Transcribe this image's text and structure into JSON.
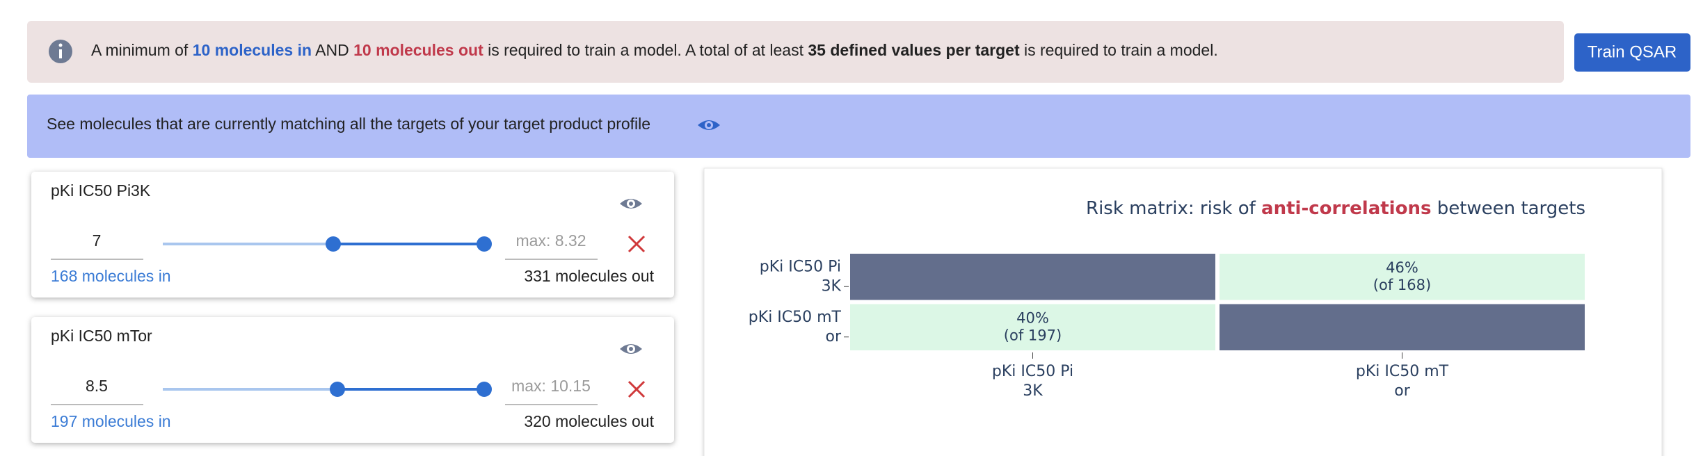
{
  "info_banner": [
    "A minimum of ",
    "10 molecules in",
    " AND ",
    "10 molecules out",
    " is required to train a model. A total of at least ",
    "35 defined values per target",
    " is required to train a model."
  ],
  "train_button": "Train QSAR",
  "match_banner": "See molecules that are currently matching all the targets of your target product profile",
  "targets": [
    {
      "name": "pKi IC50 Pi3K",
      "min": 7,
      "max_placeholder": "max: 8.32",
      "molecules_in": "168 molecules in",
      "molecules_out": "331 molecules out"
    },
    {
      "name": "pKi IC50 mTor",
      "min": 8.5,
      "max_placeholder": "max: 10.15",
      "molecules_in": "197 molecules in",
      "molecules_out": "320 molecules out"
    }
  ],
  "chart_data": {
    "type": "heatmap",
    "title": [
      "Risk matrix: risk of ",
      "anti-correlations",
      " between targets"
    ],
    "x_categories": [
      [
        "pKi IC50 Pi",
        "3K"
      ],
      [
        "pKi IC50 mT",
        "or"
      ]
    ],
    "y_categories": [
      [
        "pKi IC50 Pi",
        "3K"
      ],
      [
        "pKi IC50 mT",
        "or"
      ]
    ],
    "values": [
      [
        null,
        46
      ],
      [
        40,
        null
      ]
    ],
    "value_labels": [
      [
        null,
        [
          "46%",
          "(of 168)"
        ]
      ],
      [
        [
          "40%",
          "(of 197)"
        ],
        null
      ]
    ],
    "cell_color": "#dcf7e6",
    "diagonal_color": "#636e8c"
  }
}
